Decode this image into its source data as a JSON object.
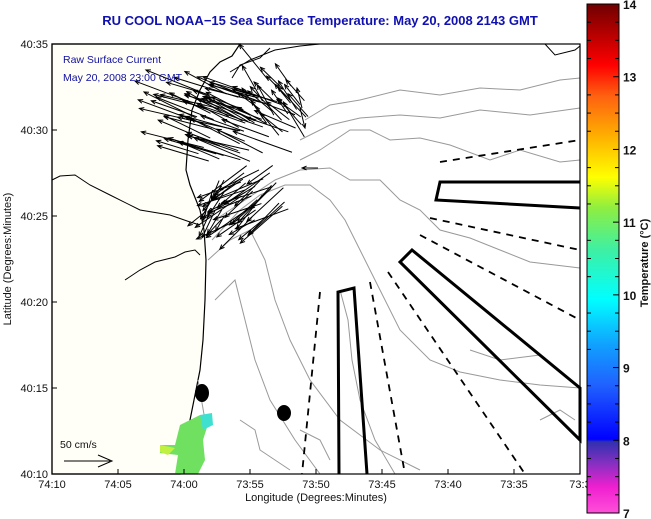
{
  "title": "RU COOL  NOAA−15  Sea Surface Temperature:  May 20, 2008 2143 GMT",
  "legend": {
    "line1": "Raw Surface Current",
    "line2": "May 20, 2008 23:00 GMT"
  },
  "scale_arrow": {
    "label": "50 cm/s"
  },
  "colors": {
    "title": "#1010b0",
    "land": "#fffef7",
    "contour": "#999999",
    "vectors": "#000000"
  },
  "chart_data": {
    "type": "map",
    "title": "RU COOL  NOAA-15  Sea Surface Temperature:  May 20, 2008 2143 GMT",
    "xlabel": "Longitude (Degrees:Minutes)",
    "ylabel": "Latitude (Degrees:Minutes)",
    "x_ticks": [
      "74:10",
      "74:05",
      "74:00",
      "73:55",
      "73:50",
      "73:45",
      "73:40",
      "73:35",
      "73:3"
    ],
    "y_ticks": [
      "40:10",
      "40:15",
      "40:20",
      "40:25",
      "40:30",
      "40:35"
    ],
    "xlim_minutes_west": [
      10,
      -30
    ],
    "ylim": [
      "40:10",
      "40:35"
    ],
    "colorbar": {
      "title": "Temperature (°C)",
      "ticks": [
        "7",
        "8",
        "9",
        "10",
        "11",
        "12",
        "13",
        "14"
      ],
      "range": [
        7,
        14
      ]
    },
    "sst_patch_values_c": [
      10.3,
      10.6,
      11.0,
      9.8
    ],
    "markers": [
      {
        "kind": "filled-oval",
        "lon": "74:00.9",
        "lat": "40:14.6"
      },
      {
        "kind": "filled-oval",
        "lon": "73:56.3",
        "lat": "40:13.5"
      }
    ]
  }
}
